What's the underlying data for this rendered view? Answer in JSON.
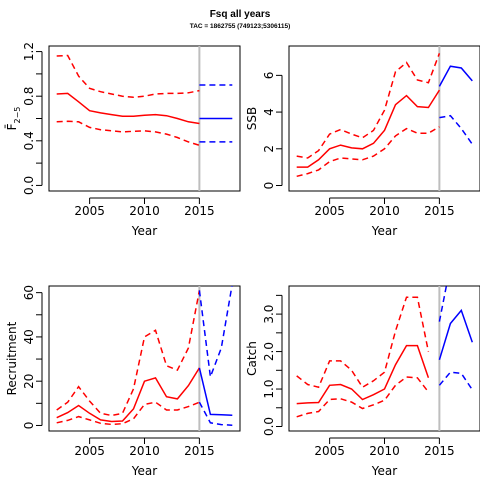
{
  "figure": {
    "title": "Fsq all years",
    "subtitle": "TAC = 1862755 (749123;5306115)"
  },
  "colors": {
    "historic": "#ff0000",
    "forecast": "#0000ff",
    "divider": "#bebebe",
    "axis": "#000000"
  },
  "chart_data": [
    {
      "type": "line",
      "panel": "fbar",
      "xlabel": "Year",
      "ylabel": "F̄",
      "ylabel_sub": "2−5",
      "xlim": [
        2001.3,
        2018.7
      ],
      "ylim": [
        -0.05,
        1.25
      ],
      "xticks": [
        2005,
        2010,
        2015
      ],
      "yticks": [
        0.0,
        0.2,
        0.4,
        0.6,
        0.8,
        1.0,
        1.2
      ],
      "ytick_labels": [
        "0.0",
        "",
        "0.4",
        "",
        "0.8",
        "",
        "1.2"
      ],
      "divider_year": 2015,
      "historic": {
        "x": [
          2002,
          2003,
          2004,
          2005,
          2006,
          2007,
          2008,
          2009,
          2010,
          2011,
          2012,
          2013,
          2014,
          2015
        ],
        "median": [
          0.82,
          0.825,
          0.75,
          0.67,
          0.65,
          0.635,
          0.62,
          0.62,
          0.63,
          0.635,
          0.625,
          0.6,
          0.57,
          0.555
        ],
        "lower": [
          0.57,
          0.575,
          0.57,
          0.52,
          0.5,
          0.49,
          0.48,
          0.485,
          0.49,
          0.48,
          0.46,
          0.43,
          0.39,
          0.36
        ],
        "upper": [
          1.16,
          1.165,
          0.98,
          0.87,
          0.84,
          0.82,
          0.8,
          0.79,
          0.8,
          0.82,
          0.825,
          0.825,
          0.83,
          0.85
        ]
      },
      "forecast": {
        "x": [
          2015,
          2016,
          2017,
          2018
        ],
        "median": [
          0.6,
          0.6,
          0.6,
          0.6
        ],
        "lower": [
          0.39,
          0.39,
          0.39,
          0.39
        ],
        "upper": [
          0.9,
          0.9,
          0.9,
          0.9
        ]
      }
    },
    {
      "type": "line",
      "panel": "ssb",
      "xlabel": "Year",
      "ylabel": "SSB",
      "xlim": [
        2001.3,
        2018.7
      ],
      "ylim": [
        -0.3,
        7.6
      ],
      "xticks": [
        2005,
        2010,
        2015
      ],
      "yticks": [
        0,
        2,
        4,
        6
      ],
      "ytick_labels": [
        "0",
        "2",
        "4",
        "6"
      ],
      "divider_year": 2015,
      "historic": {
        "x": [
          2002,
          2003,
          2004,
          2005,
          2006,
          2007,
          2008,
          2009,
          2010,
          2011,
          2012,
          2013,
          2014,
          2015
        ],
        "median": [
          1.0,
          1.0,
          1.4,
          2.0,
          2.2,
          2.05,
          2.0,
          2.3,
          3.0,
          4.4,
          4.9,
          4.3,
          4.25,
          5.2
        ],
        "lower": [
          0.5,
          0.65,
          0.85,
          1.3,
          1.5,
          1.45,
          1.4,
          1.6,
          2.0,
          2.7,
          3.1,
          2.85,
          2.85,
          3.2
        ],
        "upper": [
          1.6,
          1.5,
          1.9,
          2.8,
          3.05,
          2.8,
          2.6,
          3.0,
          4.1,
          6.2,
          6.7,
          5.75,
          5.6,
          7.2
        ]
      },
      "forecast": {
        "x": [
          2015,
          2016,
          2017,
          2018
        ],
        "median": [
          5.4,
          6.5,
          6.4,
          5.7
        ],
        "lower": [
          3.7,
          3.8,
          3.1,
          2.25
        ],
        "upper": [
          7.8,
          8.6,
          8.7,
          8.2
        ]
      }
    },
    {
      "type": "line",
      "panel": "recruitment",
      "xlabel": "Year",
      "ylabel": "Recruitment",
      "xlim": [
        2001.3,
        2018.7
      ],
      "ylim": [
        -2.5,
        63
      ],
      "xticks": [
        2005,
        2010,
        2015
      ],
      "yticks": [
        0,
        10,
        20,
        30,
        40,
        50,
        60
      ],
      "ytick_labels": [
        "0",
        "",
        "20",
        "",
        "40",
        "",
        "60"
      ],
      "divider_year": 2015,
      "historic": {
        "x": [
          2002,
          2003,
          2004,
          2005,
          2006,
          2007,
          2008,
          2009,
          2010,
          2011,
          2012,
          2013,
          2014,
          2015
        ],
        "median": [
          3.5,
          5.8,
          9.0,
          5.5,
          2.5,
          1.8,
          2.0,
          7.5,
          20.0,
          21.5,
          13.0,
          12.0,
          18.0,
          26.0
        ],
        "lower": [
          1.2,
          2.3,
          4.0,
          2.5,
          1.0,
          0.5,
          0.8,
          3.0,
          9.5,
          10.5,
          7.0,
          7.0,
          8.5,
          10.5
        ],
        "upper": [
          7.0,
          10.5,
          17.5,
          11.0,
          5.5,
          4.5,
          5.5,
          16.5,
          40.0,
          43.0,
          27.0,
          25.0,
          35.0,
          61.0
        ]
      },
      "forecast": {
        "x": [
          2015,
          2016,
          2017,
          2018
        ],
        "median": [
          26.0,
          5.0,
          4.8,
          4.6
        ],
        "lower": [
          10.5,
          1.2,
          0.4,
          0.1
        ],
        "upper": [
          61.0,
          22.0,
          35.0,
          64.0
        ]
      }
    },
    {
      "type": "line",
      "panel": "catch",
      "xlabel": "Year",
      "ylabel": "Catch",
      "xlim": [
        2001.3,
        2018.7
      ],
      "ylim": [
        -0.12,
        3.75
      ],
      "xticks": [
        2005,
        2010,
        2015
      ],
      "yticks": [
        0.0,
        0.5,
        1.0,
        1.5,
        2.0,
        2.5,
        3.0,
        3.5
      ],
      "ytick_labels": [
        "0.0",
        "",
        "1.0",
        "",
        "2.0",
        "",
        "3.0",
        ""
      ],
      "divider_year": 2015,
      "historic": {
        "x": [
          2002,
          2003,
          2004,
          2005,
          2006,
          2007,
          2008,
          2009,
          2010,
          2011,
          2012,
          2013,
          2014
        ],
        "median": [
          0.61,
          0.63,
          0.64,
          1.1,
          1.12,
          1.0,
          0.72,
          0.85,
          1.0,
          1.65,
          2.16,
          2.16,
          1.3
        ],
        "lower": [
          0.26,
          0.35,
          0.4,
          0.72,
          0.74,
          0.65,
          0.48,
          0.58,
          0.7,
          1.1,
          1.32,
          1.3,
          0.92
        ],
        "upper": [
          1.35,
          1.12,
          1.05,
          1.75,
          1.75,
          1.5,
          1.05,
          1.22,
          1.45,
          2.55,
          3.45,
          3.45,
          2.0
        ]
      },
      "forecast": {
        "x": [
          2015,
          2016,
          2017,
          2018
        ],
        "median": [
          1.78,
          2.75,
          3.1,
          2.25
        ],
        "lower": [
          1.1,
          1.45,
          1.42,
          0.98
        ],
        "upper": [
          2.8,
          4.3,
          5.0,
          3.9
        ]
      }
    }
  ]
}
